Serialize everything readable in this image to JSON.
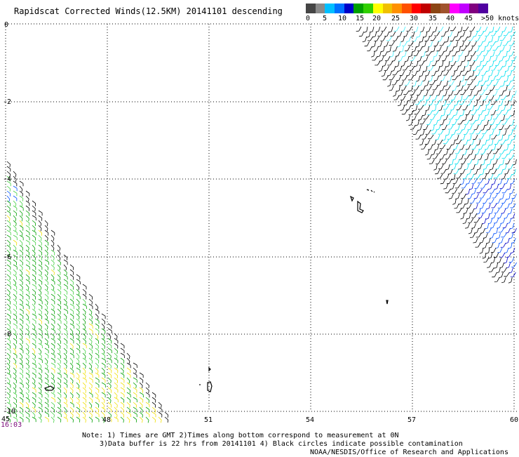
{
  "title": "Rapidscat Corrected Winds(12.5KM) 20141101 descending",
  "colorbar": {
    "labels": [
      "0",
      "5",
      "10",
      "15",
      "20",
      "25",
      "30",
      "35",
      "40",
      "45",
      ">50 knots"
    ],
    "colors": [
      "#454545",
      "#8a8a8a",
      "#00bfff",
      "#0070ff",
      "#0000c8",
      "#00a000",
      "#30d000",
      "#ffff00",
      "#f0c000",
      "#ff9000",
      "#ff5000",
      "#ff0000",
      "#c00000",
      "#8b4513",
      "#a0522d",
      "#ff00ff",
      "#c000ff",
      "#800080",
      "#5000a0"
    ]
  },
  "map": {
    "lon_ticks": [
      "45",
      "48",
      "51",
      "54",
      "57",
      "60"
    ],
    "lat_ticks": [
      "0",
      "-2",
      "-4",
      "-6",
      "-8",
      "-10"
    ],
    "time_label": "16:03"
  },
  "notes": {
    "line1": "Note: 1) Times are GMT 2)Times along bottom correspond to measurement at 0N",
    "line2": "3)Data buffer is 22 hrs from 20141101 4) Black circles indicate possible contamination",
    "line3": "NOAA/NESDIS/Office of Research and Applications"
  },
  "wind_colors": {
    "black": "#000000",
    "green": "#00a000",
    "light_green": "#40d040",
    "yellow": "#f0e000",
    "cyan": "#00e0f0",
    "light_cyan": "#40f0ff",
    "blue": "#0050ff",
    "dark_blue": "#0000c8"
  }
}
